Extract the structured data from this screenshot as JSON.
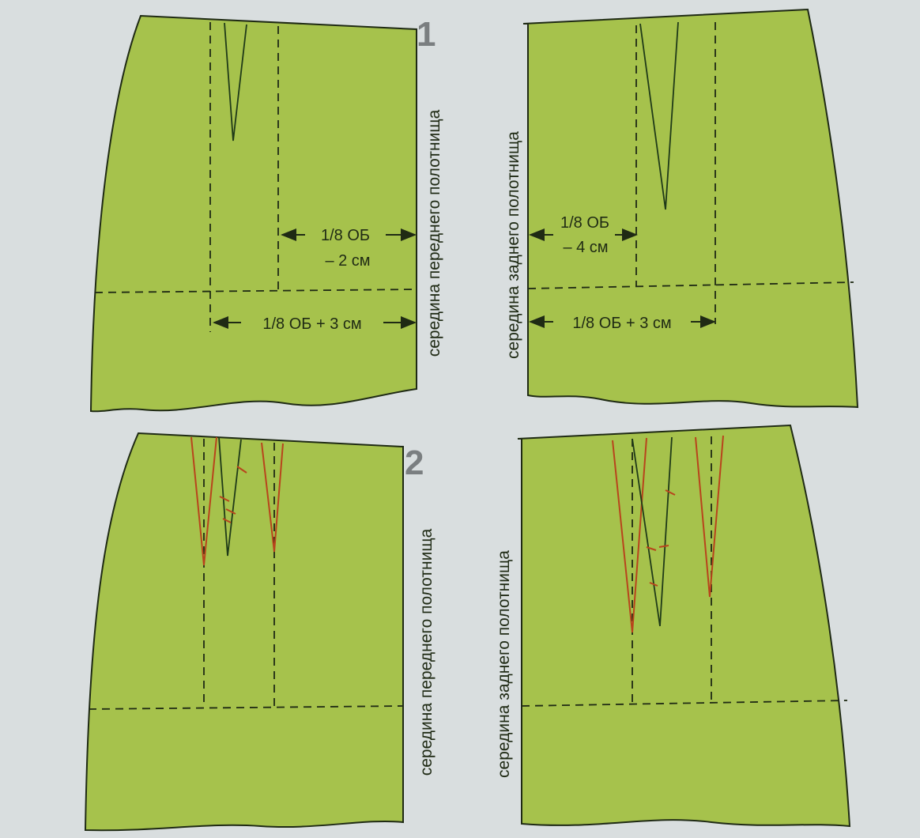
{
  "figure_numbers": [
    "1",
    "2"
  ],
  "labels": {
    "front_center": "середина переднего полотнища",
    "back_center": "середина заднего полотнища",
    "front_waist_line1": "1/8 ОБ",
    "front_waist_line2": "– 2 см",
    "back_waist_line1": "1/8 ОБ",
    "back_waist_line2": "– 4 см",
    "hip_front": "1/8 ОБ + 3 см",
    "hip_back": "1/8 ОБ + 3 см"
  },
  "colors": {
    "fabric": "#a6c24c",
    "background": "#d9dedf",
    "modified_dart": "#b8441c",
    "lines": "#1f2a14"
  }
}
